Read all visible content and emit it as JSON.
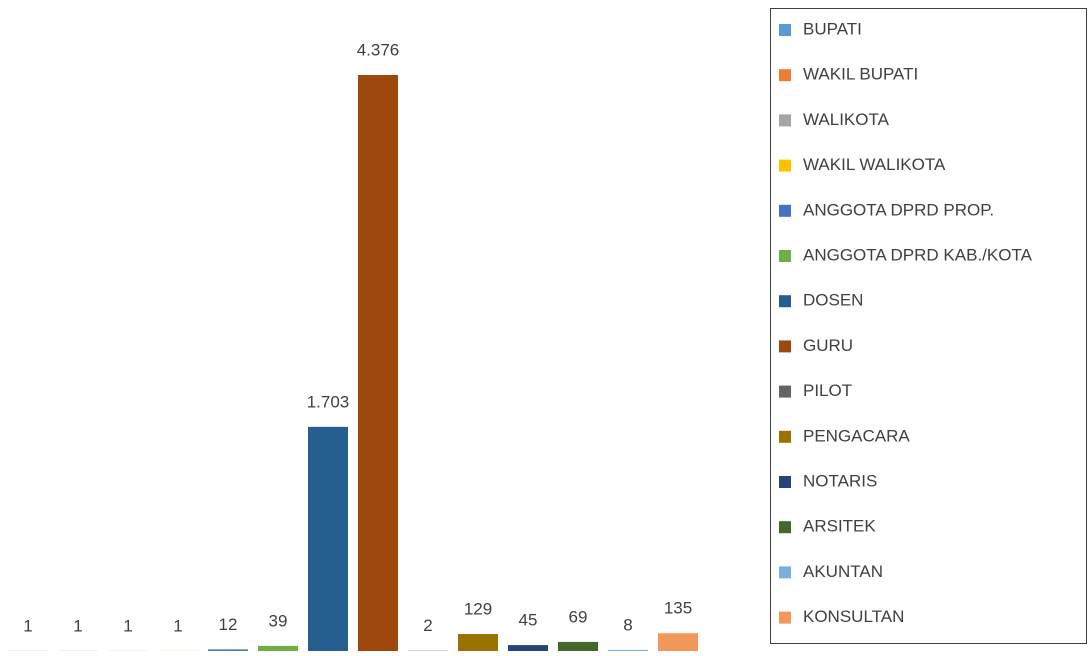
{
  "chart_data": {
    "type": "bar",
    "categories": [
      "BUPATI",
      "WAKIL BUPATI",
      "WALIKOTA",
      "WAKIL WALIKOTA",
      "ANGGOTA DPRD PROP.",
      "ANGGOTA DPRD KAB./KOTA",
      "DOSEN",
      "GURU",
      "PILOT",
      "PENGACARA",
      "NOTARIS",
      "ARSITEK",
      "AKUNTAN",
      "KONSULTAN"
    ],
    "values": [
      1,
      1,
      1,
      1,
      12,
      39,
      1703,
      4376,
      2,
      129,
      45,
      69,
      8,
      135
    ],
    "value_labels": [
      "1",
      "1",
      "1",
      "1",
      "12",
      "39",
      "1.703",
      "4.376",
      "2",
      "129",
      "45",
      "69",
      "8",
      "135"
    ],
    "colors": [
      "#5b9bd5",
      "#ed7d31",
      "#a5a5a5",
      "#ffc000",
      "#4472c4",
      "#70ad47",
      "#255e91",
      "#9e480e",
      "#636363",
      "#997300",
      "#264478",
      "#43682b",
      "#7cafdd",
      "#f1975a"
    ],
    "legend": "right"
  }
}
